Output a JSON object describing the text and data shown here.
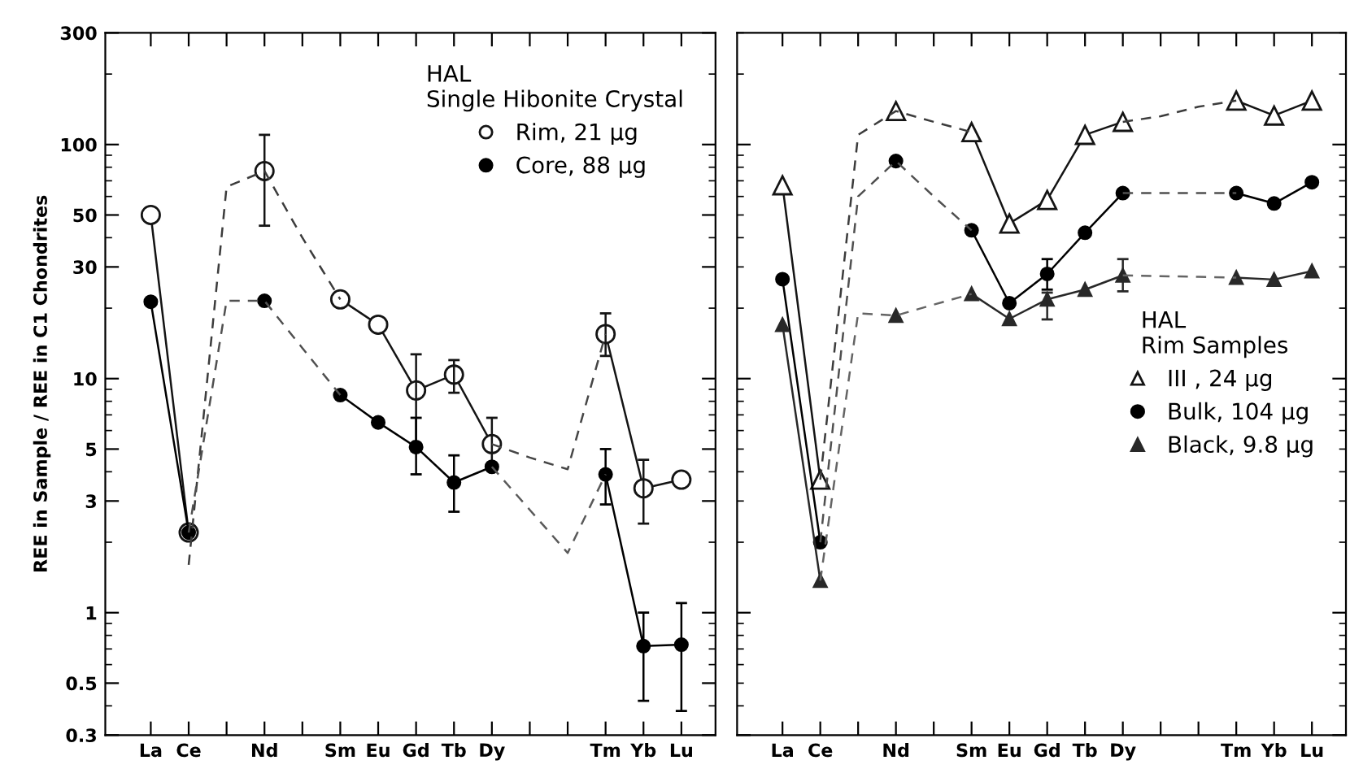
{
  "chart_data": [
    {
      "type": "line",
      "ylabel": "REE in Sample / REE in C1 Chondrites",
      "log": "y",
      "ylim": [
        0.3,
        300
      ],
      "yticks": [
        0.3,
        0.5,
        1,
        3,
        5,
        10,
        30,
        50,
        100,
        300
      ],
      "categories": [
        "La",
        "Ce",
        null,
        "Nd",
        null,
        "Sm",
        "Eu",
        "Gd",
        "Tb",
        "Dy",
        null,
        null,
        "Tm",
        "Yb",
        "Lu"
      ],
      "legend": "top right",
      "legend_title": "HAL\nSingle Hibonite Crystal",
      "series": [
        {
          "name": "Rim, 21 µg",
          "color": "#ffffff",
          "marker": "circle",
          "line_style": "solid",
          "values": [
            50,
            2.2,
            null,
            77,
            null,
            21.8,
            17,
            8.9,
            10.4,
            5.25,
            null,
            null,
            15.5,
            3.4,
            3.7
          ],
          "errors": [
            null,
            null,
            null,
            [
              45,
              110
            ],
            null,
            null,
            null,
            [
              4.9,
              12.7
            ],
            [
              8.7,
              12
            ],
            [
              4.2,
              6.8
            ],
            null,
            null,
            [
              12.5,
              19
            ],
            [
              2.4,
              4.5
            ],
            null
          ]
        },
        {
          "name": "Core, 88 µg",
          "color": "#000000",
          "marker": "circle",
          "line_style": "solid",
          "values": [
            21.3,
            2.2,
            null,
            21.5,
            null,
            8.5,
            6.5,
            5.1,
            3.6,
            4.2,
            null,
            null,
            3.9,
            0.72,
            0.73
          ],
          "errors": [
            null,
            null,
            null,
            null,
            null,
            null,
            null,
            [
              3.9,
              6.8
            ],
            [
              2.7,
              4.7
            ],
            null,
            null,
            null,
            [
              2.9,
              5
            ],
            [
              0.42,
              1
            ],
            [
              0.38,
              1.1
            ]
          ]
        },
        {
          "color": "#3c3c3c",
          "marker": "none",
          "line_style": "dashed",
          "values": [
            null,
            1.6,
            66,
            77,
            40,
            21.8,
            null,
            null,
            null,
            null,
            null,
            null,
            null,
            null,
            null
          ]
        },
        {
          "color": "#505050",
          "marker": "none",
          "line_style": "dashed",
          "values": [
            null,
            2.2,
            21.5,
            21.5,
            13.5,
            8.5,
            null,
            null,
            null,
            null,
            null,
            null,
            null,
            null,
            null
          ]
        },
        {
          "color": "#464646",
          "marker": "none",
          "line_style": "dashed",
          "values": [
            null,
            null,
            null,
            null,
            null,
            null,
            null,
            null,
            null,
            5.25,
            4.6,
            4.1,
            15.5,
            null,
            null
          ]
        },
        {
          "color": "#5a5a5a",
          "marker": "none",
          "line_style": "dashed",
          "values": [
            null,
            null,
            null,
            null,
            null,
            null,
            null,
            null,
            null,
            4.2,
            2.75,
            1.8,
            3.9,
            null,
            null
          ]
        }
      ]
    },
    {
      "type": "line",
      "log": "y",
      "ylim": [
        0.3,
        300
      ],
      "yticks": [
        {
          "value": 0.3,
          "label": null
        },
        {
          "value": 1,
          "label": null
        },
        {
          "value": 10,
          "label": null
        },
        {
          "value": 100,
          "label": null
        }
      ],
      "tick_labels": "x",
      "categories": [
        "La",
        "Ce",
        null,
        "Nd",
        null,
        "Sm",
        "Eu",
        "Gd",
        "Tb",
        "Dy",
        null,
        null,
        "Tm",
        "Yb",
        "Lu"
      ],
      "legend": "right",
      "legend_title": "HAL\nRim Samples",
      "series": [
        {
          "name": "III , 24 µg",
          "color": "#ffffff",
          "marker": "triangle",
          "line_style": "solid",
          "values": [
            67,
            3.7,
            null,
            139,
            null,
            113,
            46,
            58,
            110,
            125,
            null,
            null,
            154,
            133,
            154
          ]
        },
        {
          "name": "Bulk, 104 µg",
          "color": "#000000",
          "marker": "circle",
          "line_style": "solid",
          "values": [
            26.6,
            2.0,
            null,
            85,
            null,
            43,
            21,
            28,
            42,
            62,
            null,
            null,
            62,
            56,
            69
          ],
          "errors": [
            null,
            null,
            null,
            null,
            null,
            null,
            null,
            [
              24,
              32.4
            ],
            null,
            null,
            null,
            null,
            null,
            null,
            null
          ]
        },
        {
          "name": "Black, 9.8 µg",
          "color": "#282828",
          "marker": "triangle",
          "line_style": "solid",
          "values": [
            17,
            1.37,
            null,
            18.6,
            null,
            23,
            18,
            21.8,
            24,
            27.6,
            null,
            null,
            27,
            26.5,
            28.8
          ],
          "errors": [
            null,
            null,
            null,
            null,
            null,
            null,
            null,
            [
              17.9,
              23.3
            ],
            null,
            [
              23.6,
              32.4
            ],
            null,
            null,
            null,
            null,
            null
          ]
        },
        {
          "color": "#3c3c3c",
          "marker": "none",
          "line_style": "dashed",
          "values": [
            null,
            3.7,
            110,
            139,
            125,
            113,
            null,
            null,
            null,
            125,
            132,
            145,
            154,
            null,
            null
          ]
        },
        {
          "color": "#505050",
          "marker": "none",
          "line_style": "dashed",
          "values": [
            null,
            2.0,
            60,
            85,
            60,
            43,
            null,
            null,
            null,
            62,
            62,
            62,
            62,
            null,
            null
          ]
        },
        {
          "color": "#646464",
          "marker": "none",
          "line_style": "dashed",
          "values": [
            null,
            1.37,
            19,
            18.6,
            20.7,
            23,
            null,
            null,
            null,
            27.6,
            27.4,
            27.2,
            27,
            null,
            null
          ]
        }
      ]
    }
  ]
}
